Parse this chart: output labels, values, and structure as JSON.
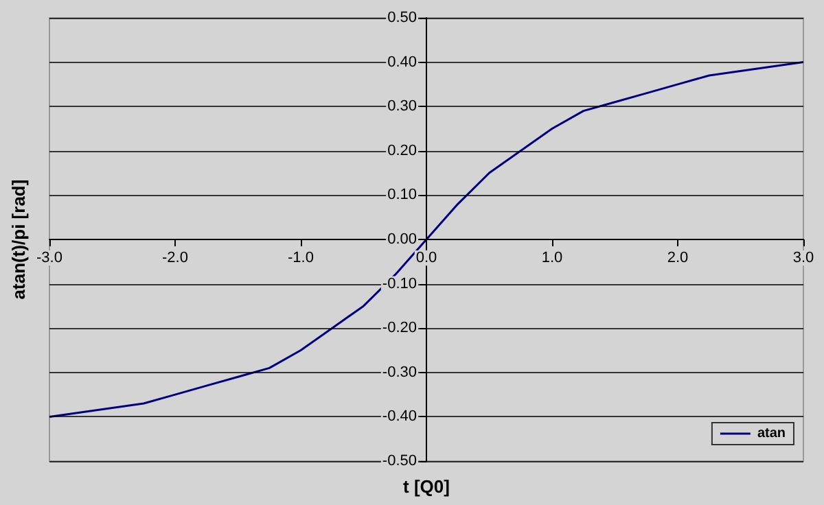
{
  "chart_data": {
    "type": "line",
    "xlabel": "t [Q0]",
    "ylabel": "atan(t)/pi [rad]",
    "x": [
      -3,
      -2.75,
      -2.5,
      -2.25,
      -2,
      -1.75,
      -1.5,
      -1.25,
      -1,
      -0.75,
      -0.5,
      -0.25,
      0,
      0.25,
      0.5,
      0.75,
      1,
      1.25,
      1.5,
      1.75,
      2,
      2.25,
      2.5,
      2.75,
      3
    ],
    "series": [
      {
        "name": "atan",
        "color": "#000080",
        "values": [
          -0.4,
          -0.39,
          -0.38,
          -0.37,
          -0.35,
          -0.33,
          -0.31,
          -0.29,
          -0.25,
          -0.2,
          -0.15,
          -0.08,
          0,
          0.08,
          0.15,
          0.2,
          0.25,
          0.29,
          0.31,
          0.33,
          0.35,
          0.37,
          0.38,
          0.39,
          0.4
        ]
      }
    ],
    "xlim": [
      -3,
      3
    ],
    "xticks": [
      {
        "value": -3,
        "label": "-3.0"
      },
      {
        "value": -2,
        "label": "-2.0"
      },
      {
        "value": -1,
        "label": "-1.0"
      },
      {
        "value": 0,
        "label": "0.0"
      },
      {
        "value": 1,
        "label": "1.0"
      },
      {
        "value": 2,
        "label": "2.0"
      },
      {
        "value": 3,
        "label": "3.0"
      }
    ],
    "ylim": [
      -0.5,
      0.5
    ],
    "yticks": [
      {
        "value": -0.5,
        "label": "-0.50"
      },
      {
        "value": -0.4,
        "label": "-0.40"
      },
      {
        "value": -0.3,
        "label": "-0.30"
      },
      {
        "value": -0.2,
        "label": "-0.20"
      },
      {
        "value": -0.1,
        "label": "-0.10"
      },
      {
        "value": 0,
        "label": "0.00"
      },
      {
        "value": 0.1,
        "label": "0.10"
      },
      {
        "value": 0.2,
        "label": "0.20"
      },
      {
        "value": 0.3,
        "label": "0.30"
      },
      {
        "value": 0.4,
        "label": "0.40"
      },
      {
        "value": 0.5,
        "label": "0.50"
      }
    ],
    "grid": "y",
    "legend": "bottom right",
    "marker": "none",
    "line_style": "solid"
  }
}
